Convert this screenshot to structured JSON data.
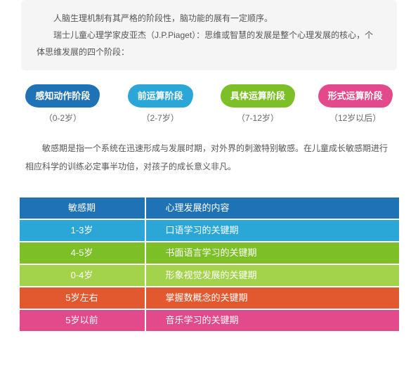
{
  "top_box": {
    "line1": "人脑生理机制有其严格的阶段性，脑功能的展有一定顺序。",
    "line2": "瑞士儿童心理学家皮亚杰（J.P.Piaget）：思维或智慧的发展是整个心理发展的核心，个体思维发展的四个阶段："
  },
  "stages": [
    {
      "label": "感知动作阶段",
      "age": "（0-2岁）",
      "color": "#1f72b5"
    },
    {
      "label": "前运算阶段",
      "age": "（2-7岁）",
      "color": "#2aa7d7"
    },
    {
      "label": "具体运算阶段",
      "age": "（7-12岁）",
      "color": "#7cbf26"
    },
    {
      "label": "形式运算阶段",
      "age": "（12岁以后）",
      "color": "#e24a8b"
    }
  ],
  "body_paragraph": "敏感期是指一个系统在迅速形成与发展时期，对外界的刺激特别敏感。在儿童成长敏感期进行相应科学的训练必定事半功倍，对孩子的成长意义非凡。",
  "table": {
    "rows": [
      {
        "c1": "敏感期",
        "c2": "心理发展的内容",
        "color": "#1f72b5"
      },
      {
        "c1": "1-3岁",
        "c2": "口语学习的关键期",
        "color": "#2aa7d7"
      },
      {
        "c1": "4-5岁",
        "c2": "书面语言学习的关键期",
        "color": "#7cbf26"
      },
      {
        "c1": "0-4岁",
        "c2": "形象视觉发展的关键期",
        "color": "#a3d24b"
      },
      {
        "c1": "5岁左右",
        "c2": "掌握数概念的关键期",
        "color": "#e2592f"
      },
      {
        "c1": "5岁以前",
        "c2": "音乐学习的关键期",
        "color": "#e24a8b"
      }
    ]
  }
}
